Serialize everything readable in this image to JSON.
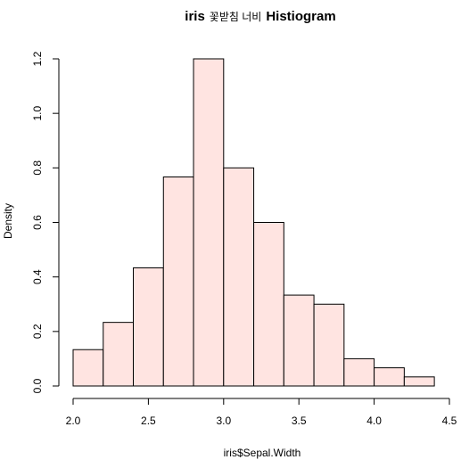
{
  "chart_data": {
    "type": "bar",
    "title_parts": [
      "iris",
      "꽃받침 너비",
      "Histiogram"
    ],
    "xlabel": "iris$Sepal.Width",
    "ylabel": "Density",
    "bin_edges": [
      2.0,
      2.2,
      2.4,
      2.6,
      2.8,
      3.0,
      3.2,
      3.4,
      3.6,
      3.8,
      4.0,
      4.2,
      4.4
    ],
    "values": [
      0.1333,
      0.2333,
      0.4333,
      0.7667,
      1.2,
      0.8,
      0.6,
      0.3333,
      0.3,
      0.1,
      0.0667,
      0.0333
    ],
    "xlim": [
      2.0,
      4.5
    ],
    "ylim": [
      0,
      1.2
    ],
    "xticks": [
      2.0,
      2.5,
      3.0,
      3.5,
      4.0,
      4.5
    ],
    "xtick_labels": [
      "2.0",
      "2.5",
      "3.0",
      "3.5",
      "4.0",
      "4.5"
    ],
    "yticks": [
      0.0,
      0.2,
      0.4,
      0.6,
      0.8,
      1.0,
      1.2
    ],
    "ytick_labels": [
      "0.0",
      "0.2",
      "0.4",
      "0.6",
      "0.8",
      "1.0",
      "1.2"
    ],
    "bar_color": "#ffe4e1",
    "grid": false
  }
}
